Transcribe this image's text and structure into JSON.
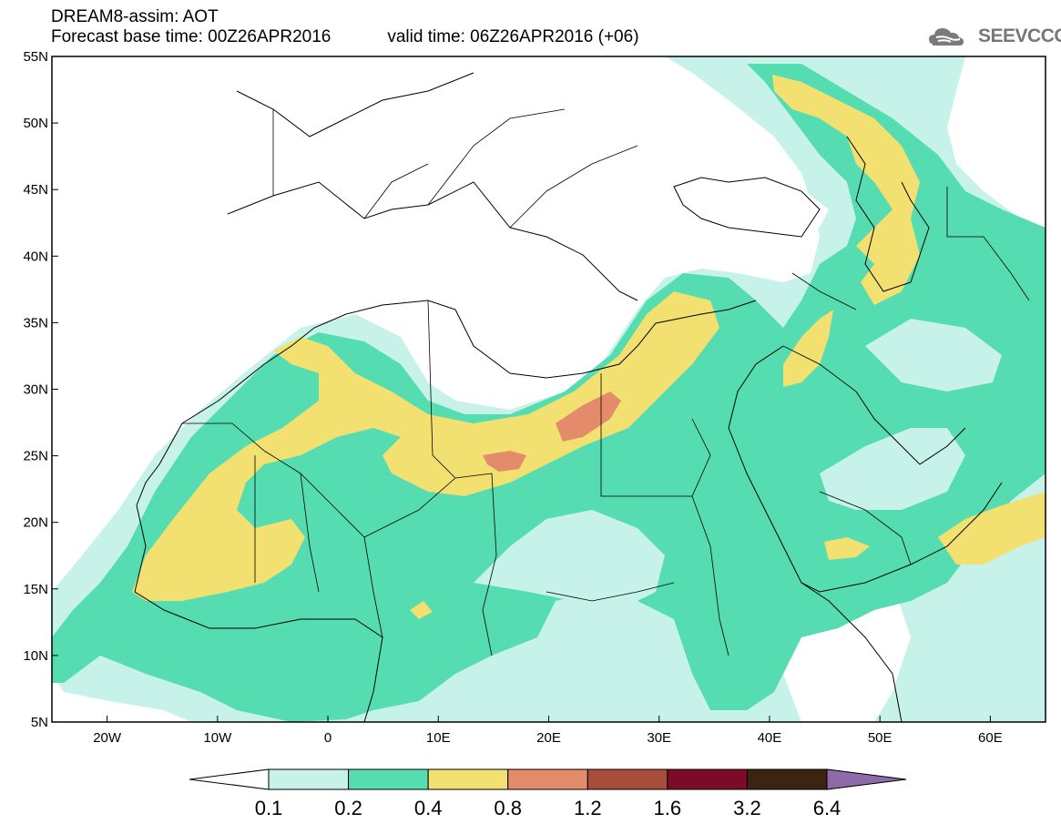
{
  "header": {
    "title_line1": "DREAM8-assim: AOT",
    "title_line2_base": "Forecast base time: 00Z26APR2016",
    "title_line2_valid": "valid time: 06Z26APR2016 (+06)"
  },
  "logo": {
    "text": "SEEVCCC",
    "icon": "cloud-icon"
  },
  "map": {
    "variable": "AOT",
    "lon_range": [
      -25,
      65
    ],
    "lat_range": [
      5,
      55
    ],
    "lat_ticks": [
      "55N",
      "50N",
      "45N",
      "40N",
      "35N",
      "30N",
      "25N",
      "20N",
      "15N",
      "10N",
      "5N"
    ],
    "lon_ticks": [
      "20W",
      "10W",
      "0",
      "10E",
      "20E",
      "30E",
      "40E",
      "50E",
      "60E"
    ],
    "features": [
      "dust-plume-sahara",
      "dust-plume-caspian",
      "dust-plume-arabian-sea",
      "coastlines",
      "country-borders"
    ]
  },
  "colorbar": {
    "labels": [
      "0.1",
      "0.2",
      "0.4",
      "0.8",
      "1.2",
      "1.6",
      "3.2",
      "6.4"
    ],
    "colors": [
      "#ffffff",
      "#c6f2ea",
      "#55dcb0",
      "#f2e070",
      "#e38b6a",
      "#a84d3c",
      "#7e0a2a",
      "#3c2410",
      "#8e6aa8"
    ]
  }
}
